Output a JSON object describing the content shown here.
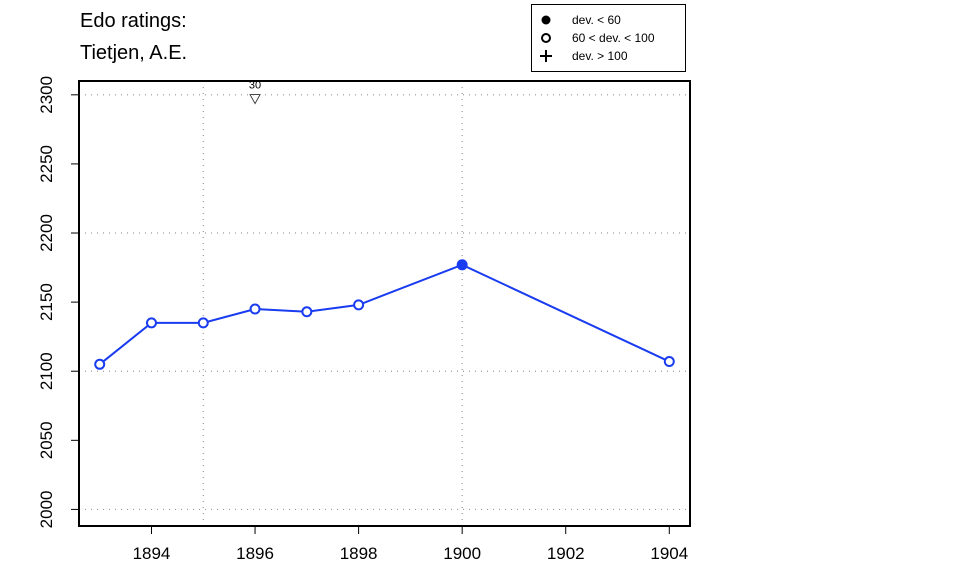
{
  "title_lines": [
    "Edo ratings:",
    "Tietjen, A.E."
  ],
  "legend": [
    {
      "symbol": "filled-circle",
      "label": "dev. < 60"
    },
    {
      "symbol": "open-circle",
      "label": "60 < dev. < 100"
    },
    {
      "symbol": "plus",
      "label": "dev. > 100"
    }
  ],
  "colors": {
    "series": "#1a3cf0",
    "grid": "#999999",
    "axis": "#000000"
  },
  "chart_data": {
    "type": "line",
    "title": "Edo ratings: Tietjen, A.E.",
    "xlabel": "",
    "ylabel": "",
    "xlim": [
      1892.6,
      1904.4
    ],
    "ylim": [
      1988,
      2310
    ],
    "x_ticks": [
      1894,
      1896,
      1898,
      1900,
      1902,
      1904
    ],
    "y_ticks": [
      2000,
      2050,
      2100,
      2150,
      2200,
      2250,
      2300
    ],
    "grid": {
      "vertical": [
        1895,
        1900
      ],
      "horizontal": [
        2000,
        2100,
        2200,
        2300
      ]
    },
    "series": [
      {
        "points": [
          {
            "x": 1893,
            "y": 2105,
            "marker": "open"
          },
          {
            "x": 1894,
            "y": 2135,
            "marker": "open"
          },
          {
            "x": 1895,
            "y": 2135,
            "marker": "open"
          },
          {
            "x": 1896,
            "y": 2145,
            "marker": "open"
          },
          {
            "x": 1897,
            "y": 2143,
            "marker": "open"
          },
          {
            "x": 1898,
            "y": 2148,
            "marker": "open"
          },
          {
            "x": 1900,
            "y": 2177,
            "marker": "filled"
          },
          {
            "x": 1904,
            "y": 2107,
            "marker": "open"
          }
        ]
      }
    ],
    "annotations": [
      {
        "x": 1896,
        "y": 2298,
        "marker": "down-triangle",
        "text": "30"
      }
    ]
  }
}
